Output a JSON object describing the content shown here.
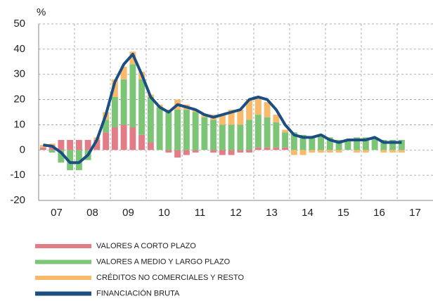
{
  "chart_data": {
    "type": "stacked_bar_line",
    "y_unit_label": "%",
    "x": [
      2007.125,
      2007.375,
      2007.625,
      2007.875,
      2008.125,
      2008.375,
      2008.625,
      2008.875,
      2009.125,
      2009.375,
      2009.625,
      2009.875,
      2010.125,
      2010.375,
      2010.625,
      2010.875,
      2011.125,
      2011.375,
      2011.625,
      2011.875,
      2012.125,
      2012.375,
      2012.625,
      2012.875,
      2013.125,
      2013.375,
      2013.625,
      2013.875,
      2014.125,
      2014.375,
      2014.625,
      2014.875,
      2015.125,
      2015.375,
      2015.625,
      2015.875,
      2016.125,
      2016.375,
      2016.625,
      2016.875,
      2017.125
    ],
    "series": [
      {
        "name": "VALORES A CORTO PLAZO",
        "color": "#e27d88",
        "kind": "bar",
        "values": [
          1,
          2,
          4,
          4,
          4,
          4,
          4,
          7,
          9,
          10,
          9,
          6,
          3,
          0,
          -1,
          -3,
          -2,
          -1,
          0,
          -1,
          -2,
          -2,
          -1,
          -1,
          1,
          1,
          1,
          1,
          0,
          0,
          0,
          0,
          0,
          0,
          0,
          0,
          0,
          0,
          0,
          0,
          0
        ]
      },
      {
        "name": "VALORES A MEDIO Y LARGO PLAZO",
        "color": "#7cc576",
        "kind": "bar",
        "values": [
          0,
          -1,
          -5,
          -8,
          -8,
          -4,
          0,
          5,
          12,
          18,
          25,
          22,
          18,
          17,
          15,
          16,
          16,
          15,
          13,
          12,
          10,
          10,
          10,
          12,
          13,
          12,
          10,
          6,
          7,
          6,
          5,
          6,
          5,
          4,
          4,
          5,
          5,
          5,
          4,
          4,
          4
        ]
      },
      {
        "name": "CRÉDITOS NO COMERCIALES Y RESTO",
        "color": "#f9b96b",
        "kind": "bar",
        "values": [
          1,
          0.5,
          0,
          0,
          0,
          0,
          1,
          3,
          7,
          5,
          5,
          3,
          1,
          1,
          1,
          4,
          2,
          1,
          1,
          2,
          4,
          6,
          6,
          8,
          7,
          6,
          3,
          1,
          -2,
          -2,
          -1,
          -1,
          -1,
          -1,
          0,
          -1,
          -1,
          0,
          -1,
          -1,
          -1
        ]
      },
      {
        "name": "FINANCIACIÓN BRUTA",
        "color": "#1b4f82",
        "kind": "line",
        "values": [
          2,
          1.5,
          -1,
          -5,
          -5,
          -2,
          4,
          14,
          27,
          34,
          38,
          30,
          21,
          17,
          15,
          18,
          17,
          16,
          14,
          13,
          14,
          15,
          16,
          20,
          21,
          20,
          16,
          10,
          6,
          5,
          5,
          6,
          4,
          3,
          4,
          4,
          4,
          5,
          3,
          3,
          3
        ]
      }
    ],
    "xlim": [
      2007,
      2018
    ],
    "xticks": [
      {
        "value": 2007.5,
        "label": "07"
      },
      {
        "value": 2008.5,
        "label": "08"
      },
      {
        "value": 2009.5,
        "label": "09"
      },
      {
        "value": 2010.5,
        "label": "10"
      },
      {
        "value": 2011.5,
        "label": "11"
      },
      {
        "value": 2012.5,
        "label": "12"
      },
      {
        "value": 2013.5,
        "label": "13"
      },
      {
        "value": 2014.5,
        "label": "14"
      },
      {
        "value": 2015.5,
        "label": "15"
      },
      {
        "value": 2016.5,
        "label": "16"
      },
      {
        "value": 2017.5,
        "label": "17"
      }
    ],
    "xgrid": [
      2008,
      2009,
      2010,
      2011,
      2012,
      2013,
      2014,
      2015,
      2016,
      2017
    ],
    "ylim": [
      -20,
      50
    ],
    "yticks": [
      -20,
      -10,
      0,
      10,
      20,
      30,
      40,
      50
    ],
    "grid": true
  }
}
